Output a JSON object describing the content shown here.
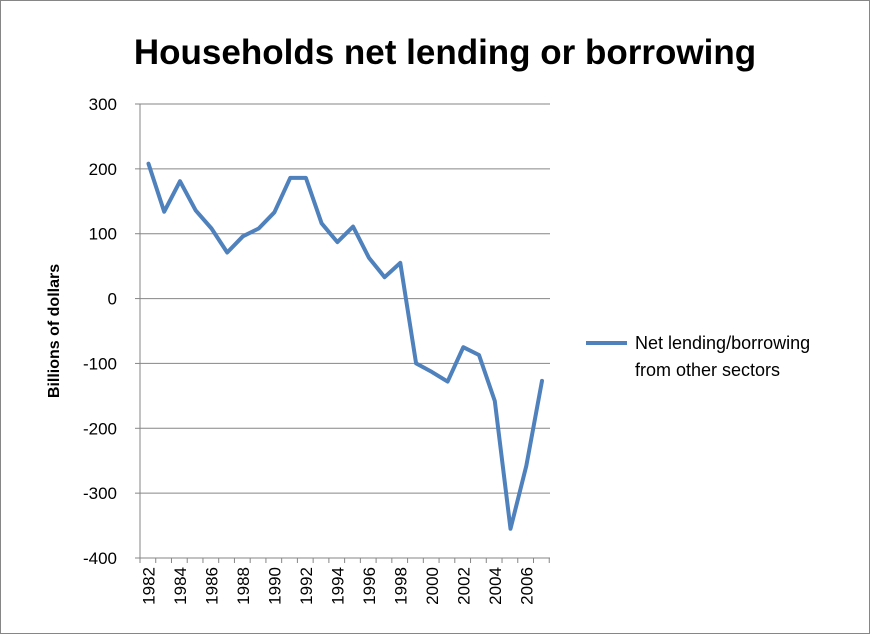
{
  "chart_data": {
    "type": "line",
    "title": "Households net lending or borrowing",
    "xlabel": "",
    "ylabel": "Billions of dollars",
    "ylim": [
      -400,
      300
    ],
    "yticks": [
      300,
      200,
      100,
      0,
      -100,
      -200,
      -300,
      -400
    ],
    "xticks": [
      "1982",
      "1984",
      "1986",
      "1988",
      "1990",
      "1992",
      "1994",
      "1996",
      "1998",
      "2000",
      "2002",
      "2004",
      "2006"
    ],
    "x": [
      1982,
      1983,
      1984,
      1985,
      1986,
      1987,
      1988,
      1989,
      1990,
      1991,
      1992,
      1993,
      1994,
      1995,
      1996,
      1997,
      1998,
      1999,
      2000,
      2001,
      2002,
      2003,
      2004,
      2005,
      2006,
      2007
    ],
    "grid": "horizontal",
    "legend_position": "right",
    "series": [
      {
        "name": "Net lending/borrowing from other sectors",
        "legend_lines": [
          "Net lending/borrowing",
          "from other sectors"
        ],
        "color": "#4F81BD",
        "values": [
          208,
          134,
          181,
          136,
          108,
          71,
          96,
          108,
          133,
          186,
          186,
          116,
          87,
          111,
          63,
          33,
          55,
          -100,
          -113,
          -128,
          -75,
          -87,
          -158,
          -355,
          -258,
          -127
        ]
      }
    ]
  }
}
